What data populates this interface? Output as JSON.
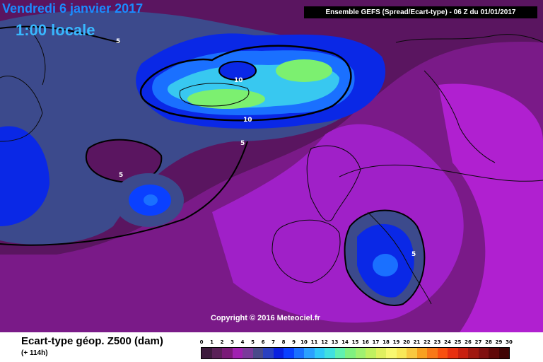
{
  "header": {
    "date": "Vendredi 6 janvier 2017",
    "time": "1:00 locale",
    "run": "Ensemble GEFS  (Spread/Ecart-type) - 06 Z du 01/01/2017"
  },
  "map": {
    "copyright": "Copyright © 2016 Meteociel.fr",
    "contour_labels": [
      "5",
      "10",
      "10",
      "5",
      "5",
      "5"
    ],
    "colors": {
      "background_low": "#5a1560",
      "magenta": "#a020c8",
      "purple_mid": "#7a1a90",
      "navy": "#3c4a8c",
      "blue": "#0a28e6",
      "cyan": "#38c8f0",
      "green": "#7cf070"
    }
  },
  "footer": {
    "title": "Ecart-type géop. Z500 (dam)",
    "lead": "(+ 114h)"
  },
  "scale": {
    "ticks": [
      "0",
      "1",
      "2",
      "3",
      "4",
      "5",
      "6",
      "7",
      "8",
      "9",
      "10",
      "11",
      "12",
      "13",
      "14",
      "15",
      "16",
      "17",
      "18",
      "19",
      "20",
      "21",
      "22",
      "23",
      "24",
      "25",
      "26",
      "27",
      "28",
      "29",
      "30"
    ],
    "colors": [
      "#3c1a3c",
      "#5a2058",
      "#7a1a78",
      "#a020b0",
      "#7a3a9a",
      "#4a4a8a",
      "#2a40c0",
      "#0a20e0",
      "#0a40ff",
      "#1a70ff",
      "#2aa0ff",
      "#30c8f8",
      "#40e0e0",
      "#60f0b0",
      "#80f080",
      "#a0f070",
      "#c0f060",
      "#e0f060",
      "#f8f870",
      "#f8e858",
      "#f8c840",
      "#f8a020",
      "#f87818",
      "#f85010",
      "#e83010",
      "#c82010",
      "#a01810",
      "#801010",
      "#600808",
      "#400404"
    ]
  }
}
